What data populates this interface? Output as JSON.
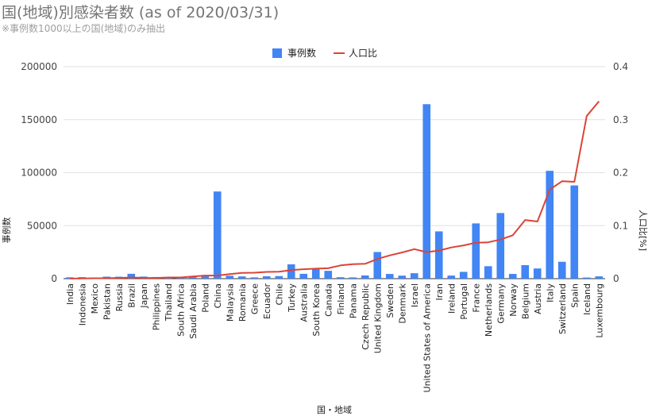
{
  "chart_data": {
    "type": "bar",
    "title": "国(地域)別感染者数 (as of 2020/03/31)",
    "subtitle": "※事例数1000以上の国(地域)のみ抽出",
    "xlabel": "国・地域",
    "ylabel": "事例数",
    "y2label": "人口比[%]",
    "ylim": [
      0,
      200000
    ],
    "y2lim": [
      0,
      0.4
    ],
    "yticks": [
      "0",
      "50000",
      "100000",
      "150000",
      "200000"
    ],
    "y2ticks": [
      "0",
      "0.1",
      "0.2",
      "0.3",
      "0.4"
    ],
    "legend_position": "top",
    "grid": true,
    "categories": [
      "India",
      "Indonesia",
      "Mexico",
      "Pakistan",
      "Russia",
      "Brazil",
      "Japan",
      "Philippines",
      "Thailand",
      "South Africa",
      "Saudi Arabia",
      "Poland",
      "China",
      "Malaysia",
      "Romania",
      "Greece",
      "Ecuador",
      "Chile",
      "Turkey",
      "Australia",
      "South Korea",
      "Canada",
      "Finland",
      "Panama",
      "Czech Republic",
      "United Kingdom",
      "Sweden",
      "Denmark",
      "Israel",
      "United States of America",
      "Iran",
      "Ireland",
      "Portugal",
      "France",
      "Netherlands",
      "Germany",
      "Norway",
      "Belgium",
      "Austria",
      "Italy",
      "Switzerland",
      "Spain",
      "Iceland",
      "Luxembourg"
    ],
    "series": [
      {
        "name": "事例数",
        "kind": "bar",
        "axis": "left",
        "color": "#4285f4",
        "values": [
          1251,
          1414,
          1094,
          1865,
          1836,
          4579,
          1953,
          1546,
          1524,
          1326,
          1453,
          2215,
          82241,
          2766,
          2109,
          1212,
          2240,
          2449,
          13531,
          4559,
          9786,
          7398,
          1384,
          1181,
          3002,
          25150,
          4435,
          2860,
          5129,
          164610,
          44605,
          2910,
          6408,
          52128,
          11750,
          61913,
          4445,
          12775,
          9618,
          101739,
          15922,
          87956,
          1086,
          2178
        ]
      },
      {
        "name": "人口比",
        "kind": "line",
        "axis": "right",
        "color": "#db4437",
        "values": [
          0.0001,
          0.0005,
          0.0008,
          0.0009,
          0.0013,
          0.0022,
          0.0015,
          0.0014,
          0.0022,
          0.0022,
          0.0042,
          0.0058,
          0.0058,
          0.0085,
          0.011,
          0.0113,
          0.0127,
          0.0131,
          0.0161,
          0.0179,
          0.0189,
          0.0196,
          0.025,
          0.0274,
          0.028,
          0.0371,
          0.0439,
          0.0494,
          0.0557,
          0.05,
          0.0531,
          0.0589,
          0.0628,
          0.0679,
          0.0686,
          0.0738,
          0.082,
          0.1107,
          0.1078,
          0.1683,
          0.1838,
          0.1827,
          0.3068,
          0.3348
        ]
      }
    ]
  }
}
